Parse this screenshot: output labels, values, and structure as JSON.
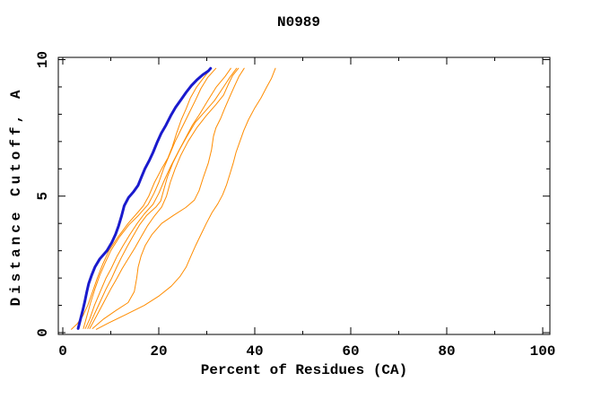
{
  "chart_data": {
    "type": "line",
    "title": "N0989",
    "xlabel": "Percent of Residues (CA)",
    "ylabel": "Distance Cutoff, A",
    "xlim": [
      0,
      100
    ],
    "ylim": [
      0,
      10
    ],
    "grid": false,
    "legend": "none",
    "x_major_ticks": [
      0,
      20,
      40,
      60,
      80,
      100
    ],
    "x_minor_ticks": [
      10,
      30,
      50,
      70,
      90
    ],
    "y_major_ticks": [
      0,
      5,
      10
    ],
    "y_minor_ticks": [
      1,
      2,
      3,
      4,
      6,
      7,
      8,
      9
    ],
    "colors": {
      "frame": "#000000",
      "blue_series": "#1a1acd",
      "orange_series": "#ff8c00",
      "background": "#ffffff"
    },
    "series": [
      {
        "name": "blue-thick-curve",
        "color": "#1a1acd",
        "width": 3,
        "points": [
          [
            3.2,
            0.15
          ],
          [
            3.7,
            0.5
          ],
          [
            4.2,
            0.85
          ],
          [
            4.6,
            1.15
          ],
          [
            5.0,
            1.5
          ],
          [
            5.4,
            1.8
          ],
          [
            6.0,
            2.1
          ],
          [
            6.7,
            2.4
          ],
          [
            7.7,
            2.7
          ],
          [
            9.2,
            3.0
          ],
          [
            10.2,
            3.3
          ],
          [
            11.0,
            3.6
          ],
          [
            11.6,
            3.9
          ],
          [
            12.2,
            4.25
          ],
          [
            12.8,
            4.65
          ],
          [
            13.7,
            4.95
          ],
          [
            14.7,
            5.15
          ],
          [
            15.7,
            5.4
          ],
          [
            16.4,
            5.7
          ],
          [
            17.1,
            6.0
          ],
          [
            18.0,
            6.3
          ],
          [
            18.8,
            6.6
          ],
          [
            19.6,
            6.95
          ],
          [
            20.5,
            7.3
          ],
          [
            21.5,
            7.6
          ],
          [
            22.5,
            7.95
          ],
          [
            23.5,
            8.25
          ],
          [
            24.7,
            8.55
          ],
          [
            25.7,
            8.8
          ],
          [
            26.8,
            9.05
          ],
          [
            27.9,
            9.25
          ],
          [
            29.2,
            9.45
          ],
          [
            30.3,
            9.58
          ],
          [
            30.8,
            9.68
          ]
        ]
      },
      {
        "name": "orange-curve-1",
        "color": "#ff8c00",
        "width": 1,
        "points": [
          [
            1.8,
            0.12
          ],
          [
            3.0,
            0.32
          ],
          [
            4.2,
            0.62
          ],
          [
            5.2,
            1.0
          ],
          [
            6.2,
            1.5
          ],
          [
            7.2,
            2.0
          ],
          [
            8.3,
            2.5
          ],
          [
            9.6,
            3.0
          ],
          [
            11.5,
            3.5
          ],
          [
            13.6,
            4.0
          ],
          [
            15.6,
            4.4
          ],
          [
            16.8,
            4.65
          ],
          [
            17.9,
            5.0
          ],
          [
            19.1,
            5.5
          ],
          [
            20.6,
            6.0
          ],
          [
            21.9,
            6.4
          ],
          [
            22.8,
            6.8
          ],
          [
            23.7,
            7.3
          ],
          [
            24.7,
            7.8
          ],
          [
            25.7,
            8.2
          ],
          [
            26.6,
            8.6
          ],
          [
            27.9,
            9.0
          ],
          [
            29.4,
            9.35
          ],
          [
            30.9,
            9.68
          ]
        ]
      },
      {
        "name": "orange-curve-2",
        "color": "#ff8c00",
        "width": 1,
        "points": [
          [
            4.3,
            0.15
          ],
          [
            5.0,
            0.6
          ],
          [
            5.8,
            1.1
          ],
          [
            6.7,
            1.6
          ],
          [
            7.7,
            2.1
          ],
          [
            8.8,
            2.55
          ],
          [
            10.0,
            3.0
          ],
          [
            11.8,
            3.5
          ],
          [
            13.8,
            3.95
          ],
          [
            15.8,
            4.3
          ],
          [
            17.8,
            4.7
          ],
          [
            19.0,
            5.1
          ],
          [
            20.0,
            5.5
          ],
          [
            21.0,
            6.0
          ],
          [
            22.2,
            6.5
          ],
          [
            23.4,
            7.0
          ],
          [
            24.8,
            7.5
          ],
          [
            26.2,
            8.0
          ],
          [
            27.6,
            8.5
          ],
          [
            28.8,
            8.95
          ],
          [
            30.2,
            9.35
          ],
          [
            31.9,
            9.68
          ]
        ]
      },
      {
        "name": "orange-curve-3",
        "color": "#ff8c00",
        "width": 1,
        "points": [
          [
            4.7,
            0.15
          ],
          [
            5.6,
            0.5
          ],
          [
            6.6,
            1.0
          ],
          [
            7.8,
            1.5
          ],
          [
            9.0,
            2.0
          ],
          [
            10.1,
            2.35
          ],
          [
            11.3,
            2.8
          ],
          [
            12.6,
            3.2
          ],
          [
            14.0,
            3.6
          ],
          [
            15.5,
            4.0
          ],
          [
            17.0,
            4.35
          ],
          [
            18.8,
            4.7
          ],
          [
            20.0,
            5.1
          ],
          [
            21.2,
            5.6
          ],
          [
            22.5,
            6.1
          ],
          [
            24.0,
            6.6
          ],
          [
            25.5,
            7.1
          ],
          [
            27.0,
            7.6
          ],
          [
            28.5,
            8.0
          ],
          [
            30.2,
            8.5
          ],
          [
            32.0,
            9.0
          ],
          [
            33.8,
            9.38
          ],
          [
            35.0,
            9.68
          ]
        ]
      },
      {
        "name": "orange-curve-4",
        "color": "#ff8c00",
        "width": 1,
        "points": [
          [
            5.2,
            0.15
          ],
          [
            6.4,
            0.6
          ],
          [
            7.7,
            1.1
          ],
          [
            9.0,
            1.6
          ],
          [
            10.2,
            2.0
          ],
          [
            11.1,
            2.35
          ],
          [
            12.2,
            2.75
          ],
          [
            13.4,
            3.15
          ],
          [
            14.7,
            3.55
          ],
          [
            16.0,
            3.95
          ],
          [
            17.5,
            4.3
          ],
          [
            19.4,
            4.6
          ],
          [
            20.4,
            4.82
          ],
          [
            21.0,
            5.2
          ],
          [
            21.8,
            5.7
          ],
          [
            22.9,
            6.2
          ],
          [
            24.3,
            6.7
          ],
          [
            25.9,
            7.2
          ],
          [
            27.6,
            7.7
          ],
          [
            29.6,
            8.1
          ],
          [
            31.6,
            8.5
          ],
          [
            33.3,
            8.95
          ],
          [
            34.8,
            9.35
          ],
          [
            36.2,
            9.68
          ]
        ]
      },
      {
        "name": "orange-curve-5",
        "color": "#ff8c00",
        "width": 1,
        "points": [
          [
            5.6,
            0.15
          ],
          [
            7.0,
            0.6
          ],
          [
            8.5,
            1.1
          ],
          [
            10.0,
            1.6
          ],
          [
            11.3,
            2.0
          ],
          [
            12.4,
            2.35
          ],
          [
            13.6,
            2.7
          ],
          [
            15.0,
            3.1
          ],
          [
            16.3,
            3.5
          ],
          [
            17.6,
            3.9
          ],
          [
            19.0,
            4.25
          ],
          [
            20.6,
            4.6
          ],
          [
            21.6,
            5.0
          ],
          [
            22.4,
            5.5
          ],
          [
            23.4,
            6.0
          ],
          [
            24.6,
            6.5
          ],
          [
            26.1,
            7.0
          ],
          [
            27.9,
            7.5
          ],
          [
            29.9,
            7.95
          ],
          [
            31.9,
            8.35
          ],
          [
            33.5,
            8.7
          ],
          [
            34.5,
            9.1
          ],
          [
            35.4,
            9.42
          ],
          [
            36.6,
            9.68
          ]
        ]
      },
      {
        "name": "orange-curve-6",
        "color": "#ff8c00",
        "width": 1,
        "points": [
          [
            6.2,
            0.15
          ],
          [
            8.5,
            0.5
          ],
          [
            11.0,
            0.8
          ],
          [
            13.6,
            1.1
          ],
          [
            14.9,
            1.5
          ],
          [
            15.4,
            2.0
          ],
          [
            15.7,
            2.4
          ],
          [
            16.3,
            2.8
          ],
          [
            17.2,
            3.2
          ],
          [
            18.6,
            3.6
          ],
          [
            20.6,
            4.0
          ],
          [
            23.1,
            4.3
          ],
          [
            25.6,
            4.58
          ],
          [
            27.4,
            4.85
          ],
          [
            28.4,
            5.2
          ],
          [
            29.3,
            5.7
          ],
          [
            30.3,
            6.2
          ],
          [
            31.0,
            6.7
          ],
          [
            31.4,
            7.2
          ],
          [
            31.9,
            7.5
          ],
          [
            32.9,
            7.85
          ],
          [
            33.7,
            8.2
          ],
          [
            34.7,
            8.6
          ],
          [
            35.7,
            9.0
          ],
          [
            36.7,
            9.38
          ],
          [
            37.8,
            9.68
          ]
        ]
      },
      {
        "name": "orange-curve-7",
        "color": "#ff8c00",
        "width": 1,
        "points": [
          [
            7.0,
            0.12
          ],
          [
            9.5,
            0.35
          ],
          [
            13.0,
            0.65
          ],
          [
            17.0,
            1.0
          ],
          [
            20.1,
            1.35
          ],
          [
            22.6,
            1.7
          ],
          [
            24.4,
            2.05
          ],
          [
            25.7,
            2.4
          ],
          [
            26.7,
            2.8
          ],
          [
            27.7,
            3.2
          ],
          [
            28.8,
            3.6
          ],
          [
            29.9,
            4.0
          ],
          [
            31.1,
            4.4
          ],
          [
            32.3,
            4.72
          ],
          [
            33.3,
            5.05
          ],
          [
            34.1,
            5.4
          ],
          [
            34.8,
            5.8
          ],
          [
            35.5,
            6.2
          ],
          [
            36.1,
            6.6
          ],
          [
            36.9,
            7.0
          ],
          [
            37.7,
            7.4
          ],
          [
            38.7,
            7.8
          ],
          [
            39.9,
            8.2
          ],
          [
            41.3,
            8.6
          ],
          [
            42.5,
            9.0
          ],
          [
            43.5,
            9.32
          ],
          [
            44.3,
            9.68
          ]
        ]
      }
    ]
  }
}
